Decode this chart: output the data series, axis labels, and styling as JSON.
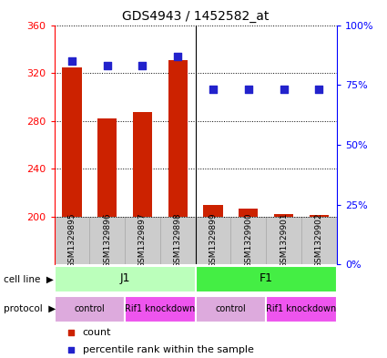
{
  "title": "GDS4943 / 1452582_at",
  "samples": [
    "GSM1329895",
    "GSM1329896",
    "GSM1329897",
    "GSM1329898",
    "GSM1329899",
    "GSM1329900",
    "GSM1329901",
    "GSM1329902"
  ],
  "bar_values": [
    325,
    282,
    287,
    331,
    210,
    207,
    202,
    201
  ],
  "bar_base": 200,
  "percentile_values": [
    85,
    83,
    83,
    87,
    73,
    73,
    73,
    73
  ],
  "left_ylim": [
    200,
    360
  ],
  "left_yticks": [
    200,
    240,
    280,
    320,
    360
  ],
  "right_ylim": [
    0,
    100
  ],
  "right_yticks": [
    0,
    25,
    50,
    75,
    100
  ],
  "right_yticklabels": [
    "0%",
    "25%",
    "50%",
    "75%",
    "100%"
  ],
  "bar_color": "#cc2200",
  "dot_color": "#2222cc",
  "cell_line_groups": [
    {
      "label": "J1",
      "color": "#bbffbb",
      "start": 0,
      "end": 4
    },
    {
      "label": "F1",
      "color": "#44ee44",
      "start": 4,
      "end": 8
    }
  ],
  "protocol_groups": [
    {
      "label": "control",
      "color": "#ddaadd",
      "start": 0,
      "end": 2
    },
    {
      "label": "Rif1 knockdown",
      "color": "#ee55ee",
      "start": 2,
      "end": 4
    },
    {
      "label": "control",
      "color": "#ddaadd",
      "start": 4,
      "end": 6
    },
    {
      "label": "Rif1 knockdown",
      "color": "#ee55ee",
      "start": 6,
      "end": 8
    }
  ],
  "cell_line_label": "cell line",
  "protocol_label": "protocol",
  "legend_count_label": "count",
  "legend_percentile_label": "percentile rank within the sample",
  "bar_width": 0.55,
  "dot_size": 35,
  "label_row_color": "#cccccc"
}
